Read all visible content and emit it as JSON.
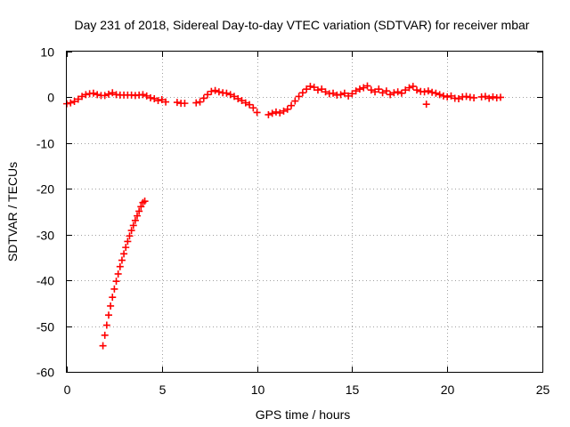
{
  "colors": {
    "series": "#ff0000",
    "grid": "#a0a0a0",
    "frame": "#000000"
  },
  "chart_data": {
    "type": "scatter",
    "title": "Day 231 of 2018, Sidereal Day-to-day VTEC variation (SDTVAR) for receiver mbar",
    "xlabel": "GPS time / hours",
    "ylabel": "SDTVAR / TECUs",
    "xlim": [
      0,
      25
    ],
    "ylim": [
      -60,
      10
    ],
    "xticks": [
      0,
      5,
      10,
      15,
      20,
      25
    ],
    "yticks": [
      10,
      0,
      -10,
      -20,
      -30,
      -40,
      -50,
      -60
    ],
    "grid": true,
    "marker": "plus",
    "series": [
      {
        "name": "SDTVAR",
        "points": [
          [
            0.0,
            -1.4
          ],
          [
            0.2,
            -1.2
          ],
          [
            0.4,
            -0.9
          ],
          [
            0.6,
            -0.4
          ],
          [
            0.8,
            0.2
          ],
          [
            1.0,
            0.6
          ],
          [
            1.2,
            0.8
          ],
          [
            1.4,
            0.9
          ],
          [
            1.6,
            0.6
          ],
          [
            1.8,
            0.4
          ],
          [
            2.0,
            0.4
          ],
          [
            2.2,
            0.7
          ],
          [
            2.4,
            1.0
          ],
          [
            2.6,
            0.6
          ],
          [
            2.8,
            0.5
          ],
          [
            3.0,
            0.5
          ],
          [
            3.2,
            0.5
          ],
          [
            3.4,
            0.5
          ],
          [
            3.6,
            0.4
          ],
          [
            3.8,
            0.5
          ],
          [
            4.0,
            0.6
          ],
          [
            4.2,
            0.3
          ],
          [
            4.4,
            -0.1
          ],
          [
            4.6,
            -0.3
          ],
          [
            4.8,
            -0.7
          ],
          [
            5.0,
            -0.5
          ],
          [
            5.2,
            -1.0
          ],
          [
            5.8,
            -1.1
          ],
          [
            6.0,
            -1.3
          ],
          [
            6.2,
            -1.3
          ],
          [
            6.8,
            -1.2
          ],
          [
            7.0,
            -1.0
          ],
          [
            7.2,
            -0.2
          ],
          [
            7.4,
            0.6
          ],
          [
            7.6,
            1.3
          ],
          [
            7.8,
            1.5
          ],
          [
            8.0,
            1.2
          ],
          [
            8.2,
            1.0
          ],
          [
            8.4,
            0.9
          ],
          [
            8.6,
            0.6
          ],
          [
            8.8,
            0.2
          ],
          [
            9.0,
            -0.3
          ],
          [
            9.2,
            -0.7
          ],
          [
            9.4,
            -1.2
          ],
          [
            9.6,
            -1.6
          ],
          [
            9.8,
            -2.3
          ],
          [
            10.0,
            -3.3
          ],
          [
            10.6,
            -3.8
          ],
          [
            10.8,
            -3.5
          ],
          [
            11.0,
            -3.2
          ],
          [
            11.2,
            -3.4
          ],
          [
            11.4,
            -3.0
          ],
          [
            11.6,
            -2.6
          ],
          [
            11.8,
            -1.8
          ],
          [
            12.0,
            -0.8
          ],
          [
            12.2,
            0.2
          ],
          [
            12.4,
            1.0
          ],
          [
            12.6,
            1.8
          ],
          [
            12.8,
            2.4
          ],
          [
            13.0,
            2.2
          ],
          [
            13.2,
            1.6
          ],
          [
            13.4,
            1.8
          ],
          [
            13.6,
            1.2
          ],
          [
            13.8,
            0.8
          ],
          [
            14.0,
            0.9
          ],
          [
            14.2,
            0.5
          ],
          [
            14.4,
            0.6
          ],
          [
            14.6,
            0.9
          ],
          [
            14.8,
            0.3
          ],
          [
            15.0,
            0.8
          ],
          [
            15.2,
            1.4
          ],
          [
            15.4,
            1.8
          ],
          [
            15.6,
            2.1
          ],
          [
            15.8,
            2.5
          ],
          [
            16.0,
            1.6
          ],
          [
            16.2,
            1.2
          ],
          [
            16.4,
            1.8
          ],
          [
            16.6,
            1.0
          ],
          [
            16.8,
            1.4
          ],
          [
            17.0,
            0.6
          ],
          [
            17.2,
            1.0
          ],
          [
            17.4,
            1.2
          ],
          [
            17.6,
            0.9
          ],
          [
            17.8,
            1.6
          ],
          [
            18.0,
            2.1
          ],
          [
            18.2,
            2.4
          ],
          [
            18.4,
            1.6
          ],
          [
            18.6,
            1.3
          ],
          [
            18.8,
            1.2
          ],
          [
            18.9,
            -1.5
          ],
          [
            19.0,
            1.4
          ],
          [
            19.2,
            1.1
          ],
          [
            19.4,
            0.9
          ],
          [
            19.6,
            0.6
          ],
          [
            19.8,
            0.3
          ],
          [
            20.0,
            0.1
          ],
          [
            20.2,
            0.3
          ],
          [
            20.4,
            -0.2
          ],
          [
            20.6,
            -0.3
          ],
          [
            20.8,
            0.1
          ],
          [
            21.0,
            0.2
          ],
          [
            21.2,
            0.0
          ],
          [
            21.4,
            -0.1
          ],
          [
            21.8,
            0.1
          ],
          [
            22.0,
            0.2
          ],
          [
            22.2,
            -0.2
          ],
          [
            22.4,
            0.1
          ],
          [
            22.6,
            -0.1
          ],
          [
            22.8,
            0.0
          ],
          [
            1.9,
            -54.3
          ],
          [
            2.0,
            -52.0
          ],
          [
            2.1,
            -49.8
          ],
          [
            2.2,
            -47.6
          ],
          [
            2.3,
            -45.6
          ],
          [
            2.4,
            -43.7
          ],
          [
            2.5,
            -41.9
          ],
          [
            2.6,
            -40.2
          ],
          [
            2.7,
            -38.6
          ],
          [
            2.8,
            -37.0
          ],
          [
            2.9,
            -35.6
          ],
          [
            3.0,
            -34.2
          ],
          [
            3.1,
            -32.8
          ],
          [
            3.2,
            -31.5
          ],
          [
            3.3,
            -30.3
          ],
          [
            3.4,
            -29.1
          ],
          [
            3.5,
            -28.0
          ],
          [
            3.6,
            -26.9
          ],
          [
            3.7,
            -25.9
          ],
          [
            3.8,
            -24.9
          ],
          [
            3.9,
            -23.9
          ],
          [
            4.0,
            -23.0
          ],
          [
            4.1,
            -22.7
          ]
        ]
      }
    ]
  }
}
